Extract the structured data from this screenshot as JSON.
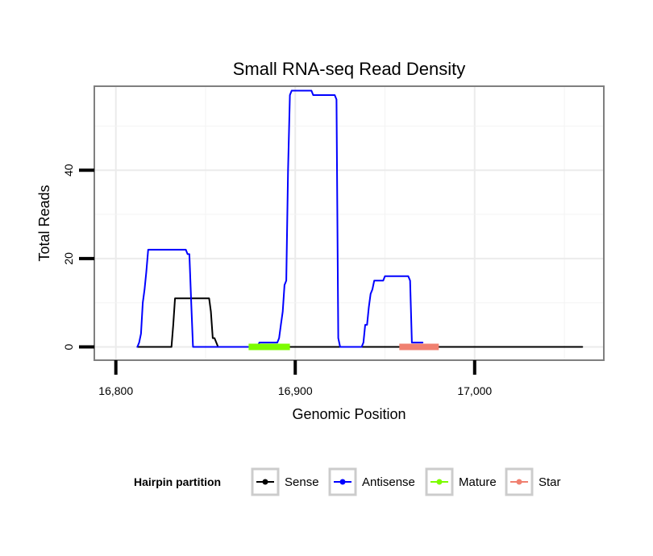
{
  "chart_data": {
    "type": "line",
    "title": "Small RNA-seq Read Density",
    "xlabel": "Genomic Position",
    "ylabel": "Total Reads",
    "xlim": [
      16788,
      17072
    ],
    "ylim": [
      -3,
      59
    ],
    "x_ticks": [
      16800,
      16900,
      17000
    ],
    "x_tick_labels": [
      "16,800",
      "16,900",
      "17,000"
    ],
    "y_ticks": [
      0,
      20,
      40
    ],
    "y_tick_labels": [
      "0",
      "20",
      "40"
    ],
    "legend": {
      "title": "Hairpin partition",
      "position": "bottom",
      "entries": [
        {
          "name": "Sense",
          "color": "#000000"
        },
        {
          "name": "Antisense",
          "color": "#0000ff"
        },
        {
          "name": "Mature",
          "color": "#7cfc00"
        },
        {
          "name": "Star",
          "color": "#f08070"
        }
      ]
    },
    "series": [
      {
        "name": "Sense",
        "color": "#000000",
        "x": [
          16812,
          16831,
          16832,
          16833,
          16852,
          16853,
          16854,
          16855,
          16857,
          16858,
          17060
        ],
        "y": [
          0,
          0,
          5,
          11,
          11,
          8,
          2,
          2,
          0,
          0,
          0
        ]
      },
      {
        "name": "Antisense",
        "color": "#0000ff",
        "x": [
          16812,
          16813,
          16814,
          16815,
          16816,
          16817,
          16818,
          16838,
          16839,
          16840,
          16841,
          16842,
          16843,
          16844,
          16872,
          16879,
          16880,
          16890,
          16891,
          16892,
          16893,
          16894,
          16895,
          16896,
          16897,
          16898,
          16899,
          16903,
          16904,
          16909,
          16910,
          16922,
          16923,
          16924,
          16925,
          16937,
          16938,
          16939,
          16940,
          16941,
          16942,
          16943,
          16944,
          16948,
          16949,
          16950,
          16963,
          16964,
          16965,
          16966,
          16971
        ],
        "y": [
          0,
          1,
          3,
          10,
          13,
          17,
          22,
          22,
          22,
          21,
          21,
          10,
          0,
          0,
          0,
          0,
          1,
          1,
          2,
          5,
          8,
          14,
          15,
          40,
          57,
          58,
          58,
          58,
          58,
          58,
          57,
          57,
          56,
          2,
          0,
          0,
          1,
          5,
          5,
          9,
          12,
          13,
          15,
          15,
          15,
          16,
          16,
          15,
          1,
          1,
          1
        ]
      },
      {
        "name": "Mature",
        "color": "#7cfc00",
        "x": [
          16874,
          16897
        ],
        "y": [
          0,
          0
        ]
      },
      {
        "name": "Star",
        "color": "#f08070",
        "x": [
          16958,
          16980
        ],
        "y": [
          0,
          0
        ]
      }
    ]
  }
}
